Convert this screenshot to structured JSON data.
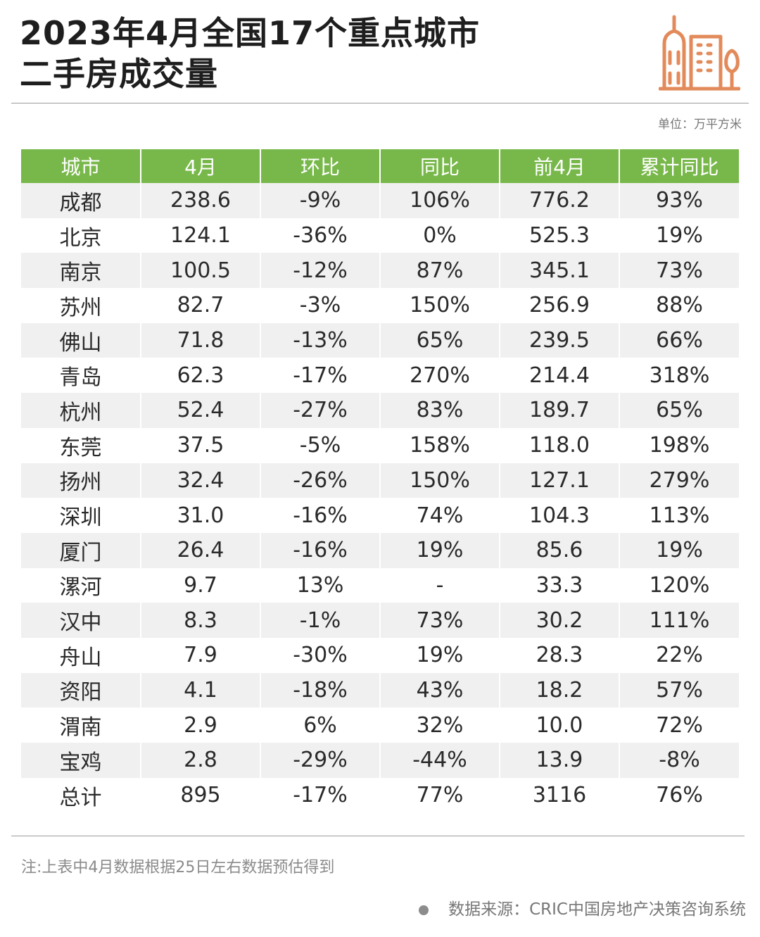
{
  "title": {
    "line1": "2023年4月全国17个重点城市",
    "line2": "二手房成交量"
  },
  "logo_icon": "city-buildings-icon",
  "accent_color": "#e38a5a",
  "header_color": "#78b84a",
  "unit": "单位：万平方米",
  "table": {
    "headers": [
      "城市",
      "4月",
      "环比",
      "同比",
      "前4月",
      "累计同比"
    ],
    "rows": [
      [
        "成都",
        "238.6",
        "-9%",
        "106%",
        "776.2",
        "93%"
      ],
      [
        "北京",
        "124.1",
        "-36%",
        "0%",
        "525.3",
        "19%"
      ],
      [
        "南京",
        "100.5",
        "-12%",
        "87%",
        "345.1",
        "73%"
      ],
      [
        "苏州",
        "82.7",
        "-3%",
        "150%",
        "256.9",
        "88%"
      ],
      [
        "佛山",
        "71.8",
        "-13%",
        "65%",
        "239.5",
        "66%"
      ],
      [
        "青岛",
        "62.3",
        "-17%",
        "270%",
        "214.4",
        "318%"
      ],
      [
        "杭州",
        "52.4",
        "-27%",
        "83%",
        "189.7",
        "65%"
      ],
      [
        "东莞",
        "37.5",
        "-5%",
        "158%",
        "118.0",
        "198%"
      ],
      [
        "扬州",
        "32.4",
        "-26%",
        "150%",
        "127.1",
        "279%"
      ],
      [
        "深圳",
        "31.0",
        "-16%",
        "74%",
        "104.3",
        "113%"
      ],
      [
        "厦门",
        "26.4",
        "-16%",
        "19%",
        "85.6",
        "19%"
      ],
      [
        "漯河",
        "9.7",
        "13%",
        "-",
        "33.3",
        "120%"
      ],
      [
        "汉中",
        "8.3",
        "-1%",
        "73%",
        "30.2",
        "111%"
      ],
      [
        "舟山",
        "7.9",
        "-30%",
        "19%",
        "28.3",
        "22%"
      ],
      [
        "资阳",
        "4.1",
        "-18%",
        "43%",
        "18.2",
        "57%"
      ],
      [
        "渭南",
        "2.9",
        "6%",
        "32%",
        "10.0",
        "72%"
      ],
      [
        "宝鸡",
        "2.8",
        "-29%",
        "-44%",
        "13.9",
        "-8%"
      ],
      [
        "总计",
        "895",
        "-17%",
        "77%",
        "3116",
        "76%"
      ]
    ]
  },
  "note": "注:上表中4月数据根据25日左右数据预估得到",
  "source": "数据来源：CRIC中国房地产决策咨询系统"
}
